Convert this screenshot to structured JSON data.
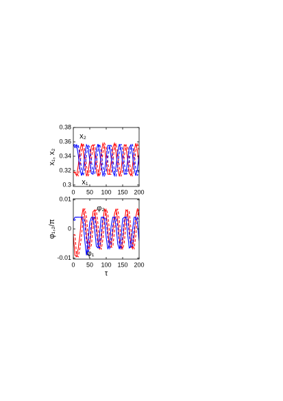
{
  "chart_data": [
    {
      "type": "line",
      "ylabel": "x₁, x₂",
      "annotations": [
        "x₂",
        "x₁"
      ],
      "x": [
        0,
        5,
        10,
        15,
        20,
        25,
        30,
        35,
        40,
        45,
        50,
        55,
        60,
        65,
        70,
        75,
        80,
        85,
        90,
        95,
        100,
        105,
        110,
        115,
        120,
        125,
        130,
        135,
        140,
        145,
        150,
        155,
        160,
        165,
        170,
        175,
        180,
        185,
        190,
        195,
        200
      ],
      "xlim": [
        0,
        200
      ],
      "xticks": [
        0,
        50,
        100,
        150,
        200
      ],
      "ylim": [
        0.298,
        0.38
      ],
      "yticks": [
        0.3,
        0.32,
        0.34,
        0.36,
        0.38
      ],
      "series": [
        {
          "color": "#ff0000",
          "linestyle": "solid",
          "values": [
            0.318,
            0.317,
            0.313,
            0.327,
            0.348,
            0.358,
            0.348,
            0.327,
            0.313,
            0.317,
            0.336,
            0.354,
            0.356,
            0.34,
            0.32,
            0.312,
            0.324,
            0.345,
            0.358,
            0.352,
            0.332,
            0.315,
            0.315,
            0.332,
            0.352,
            0.358,
            0.345,
            0.324,
            0.312,
            0.32,
            0.34,
            0.356,
            0.354,
            0.336,
            0.317,
            0.313,
            0.327,
            0.348,
            0.358,
            0.348,
            0.327
          ]
        },
        {
          "color": "#ff0000",
          "linestyle": "dashed",
          "values": [
            0.318,
            0.318,
            0.317,
            0.313,
            0.327,
            0.348,
            0.358,
            0.348,
            0.327,
            0.313,
            0.317,
            0.336,
            0.354,
            0.356,
            0.34,
            0.32,
            0.312,
            0.324,
            0.345,
            0.358,
            0.352,
            0.332,
            0.315,
            0.315,
            0.332,
            0.352,
            0.358,
            0.345,
            0.324,
            0.312,
            0.32,
            0.34,
            0.356,
            0.354,
            0.336,
            0.317,
            0.313,
            0.327,
            0.348,
            0.358,
            0.348
          ]
        },
        {
          "color": "#0000ff",
          "linestyle": "solid",
          "values": [
            0.356,
            0.352,
            0.356,
            0.342,
            0.322,
            0.313,
            0.322,
            0.342,
            0.356,
            0.352,
            0.334,
            0.316,
            0.315,
            0.33,
            0.349,
            0.357,
            0.346,
            0.326,
            0.313,
            0.319,
            0.338,
            0.355,
            0.355,
            0.338,
            0.319,
            0.313,
            0.326,
            0.346,
            0.357,
            0.349,
            0.33,
            0.315,
            0.316,
            0.334,
            0.352,
            0.356,
            0.342,
            0.322,
            0.313,
            0.322,
            0.342
          ]
        },
        {
          "color": "#0000ff",
          "linestyle": "dashed",
          "values": [
            0.356,
            0.356,
            0.352,
            0.356,
            0.342,
            0.322,
            0.313,
            0.322,
            0.342,
            0.356,
            0.352,
            0.334,
            0.316,
            0.315,
            0.33,
            0.349,
            0.357,
            0.346,
            0.326,
            0.313,
            0.319,
            0.338,
            0.355,
            0.355,
            0.338,
            0.319,
            0.313,
            0.326,
            0.346,
            0.357,
            0.349,
            0.33,
            0.315,
            0.316,
            0.334,
            0.352,
            0.356,
            0.342,
            0.322,
            0.313,
            0.322
          ]
        }
      ]
    },
    {
      "type": "line",
      "ylabel": "φ₁,₂/π",
      "xlabel": "τ",
      "annotations": [
        "φ₂",
        "φ₁"
      ],
      "x": [
        0,
        5,
        10,
        15,
        20,
        25,
        30,
        35,
        40,
        45,
        50,
        55,
        60,
        65,
        70,
        75,
        80,
        85,
        90,
        95,
        100,
        105,
        110,
        115,
        120,
        125,
        130,
        135,
        140,
        145,
        150,
        155,
        160,
        165,
        170,
        175,
        180,
        185,
        190,
        195,
        200
      ],
      "xlim": [
        0,
        200
      ],
      "xticks": [
        0,
        50,
        100,
        150,
        200
      ],
      "ylim": [
        -0.0103,
        0.0103
      ],
      "yticks": [
        -0.01,
        0,
        0.01
      ],
      "series": [
        {
          "color": "#ff0000",
          "linestyle": "solid",
          "values": [
            -0.002,
            -0.009,
            -0.0095,
            -0.0067,
            -0.0023,
            0.0041,
            0.007,
            0.0041,
            -0.0023,
            -0.0067,
            -0.0055,
            0.0003,
            0.0059,
            0.0065,
            0.0016,
            -0.0046,
            -0.007,
            -0.0035,
            0.0029,
            0.0069,
            0.0051,
            -0.001,
            -0.0062,
            -0.0062,
            -0.001,
            0.0051,
            0.0069,
            0.0029,
            -0.0035,
            -0.007,
            -0.0046,
            0.0016,
            0.0065,
            0.0059,
            0.0003,
            -0.0055,
            -0.0067,
            -0.0023,
            0.0041,
            0.007,
            0.0041
          ]
        },
        {
          "color": "#ff0000",
          "linestyle": "dashed",
          "values": [
            -0.002,
            -0.002,
            -0.009,
            -0.0095,
            -0.0067,
            -0.0023,
            0.0041,
            0.007,
            0.0041,
            -0.0023,
            -0.0067,
            -0.0055,
            0.0003,
            0.0059,
            0.0065,
            0.0016,
            -0.0046,
            -0.007,
            -0.0035,
            0.0029,
            0.0069,
            0.0051,
            -0.001,
            -0.0062,
            -0.0062,
            -0.001,
            0.0051,
            0.0069,
            0.0029,
            -0.0035,
            -0.007,
            -0.0046,
            0.0016,
            0.0065,
            0.0059,
            0.0003,
            -0.0055,
            -0.0067,
            -0.0023,
            0.0041,
            0.007
          ]
        },
        {
          "color": "#0000ff",
          "linestyle": "solid",
          "values": [
            0.003,
            0.004,
            0.004,
            0.004,
            0.004,
            0.004,
            0.0023,
            -0.0041,
            -0.009,
            -0.0041,
            0.0023,
            0.004,
            0.004,
            -0.0003,
            -0.0059,
            -0.0065,
            -0.0016,
            0.004,
            0.004,
            0.0035,
            -0.0029,
            -0.0069,
            -0.0051,
            0.001,
            0.004,
            0.004,
            0.001,
            -0.0051,
            -0.0069,
            -0.0029,
            0.0035,
            0.004,
            0.004,
            -0.0016,
            -0.0065,
            -0.0059,
            -0.0003,
            0.004,
            0.004,
            0.0023,
            -0.0041
          ]
        },
        {
          "color": "#0000ff",
          "linestyle": "dashed",
          "values": [
            0.003,
            0.003,
            0.004,
            0.004,
            0.004,
            0.004,
            0.004,
            0.0023,
            -0.0041,
            -0.009,
            -0.0041,
            0.0023,
            0.004,
            0.004,
            -0.0003,
            -0.0059,
            -0.0065,
            -0.0016,
            0.004,
            0.004,
            0.0035,
            -0.0029,
            -0.0069,
            -0.0051,
            0.001,
            0.004,
            0.004,
            0.001,
            -0.0051,
            -0.0069,
            -0.0029,
            0.0035,
            0.004,
            0.004,
            -0.0016,
            -0.0065,
            -0.0059,
            -0.0003,
            0.004,
            0.004,
            0.0023
          ]
        }
      ]
    }
  ]
}
